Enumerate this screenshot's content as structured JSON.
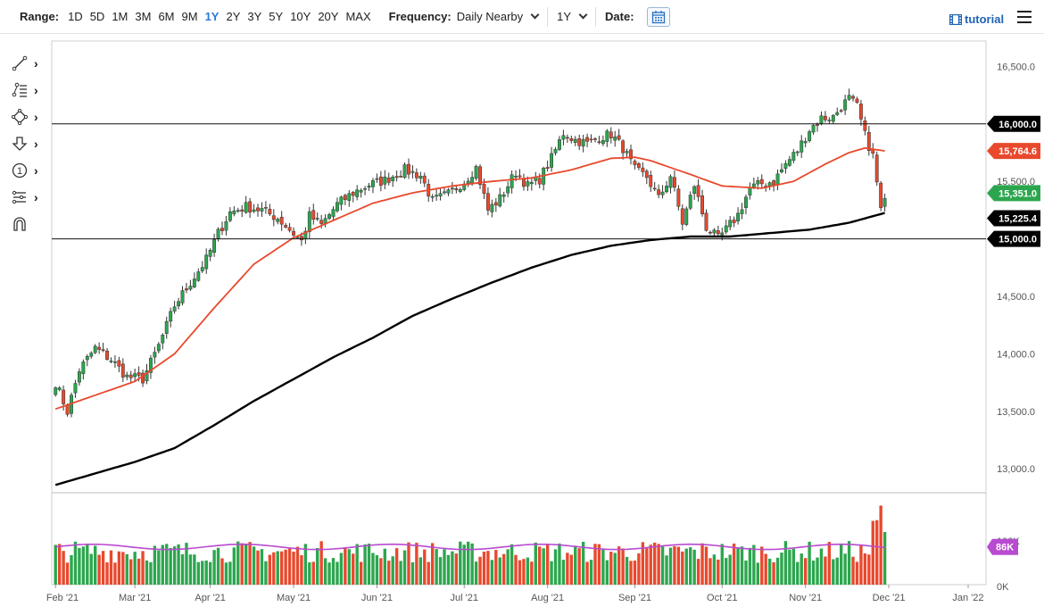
{
  "toolbar": {
    "range_label": "Range:",
    "ranges": [
      "1D",
      "5D",
      "1M",
      "3M",
      "6M",
      "9M",
      "1Y",
      "2Y",
      "3Y",
      "5Y",
      "10Y",
      "20Y",
      "MAX"
    ],
    "active_range": "1Y",
    "frequency_label": "Frequency:",
    "frequency_value": "Daily Nearby",
    "period_value": "1Y",
    "date_label": "Date:",
    "tutorial_label": "tutorial"
  },
  "sidebar": {
    "tools": [
      "line-tool-icon",
      "fib-tool-icon",
      "shape-tool-icon",
      "arrow-down-tool-icon",
      "number-tool-icon",
      "pattern-tool-icon",
      "magnet-icon"
    ]
  },
  "colors": {
    "up": "#2ca64e",
    "down": "#e8492d",
    "ma_fast": "#e8492d",
    "ma_slow": "#000000",
    "volume_avg": "#b84bd0",
    "accent": "#2a7ad8"
  },
  "chart_data": {
    "type": "candlestick",
    "y_ticks": [
      13000,
      13500,
      14000,
      14500,
      15000,
      15500,
      16000,
      16500
    ],
    "y_tick_labels": [
      "13,000.0",
      "13,500.0",
      "14,000.0",
      "14,500.0",
      "15,000.0",
      "15,500.0",
      "16,000.0",
      "16,500.0"
    ],
    "ylim": [
      12800,
      16720
    ],
    "x_labels": [
      "Feb '21",
      "Mar '21",
      "Apr '21",
      "May '21",
      "Jun '21",
      "Jul '21",
      "Aug '21",
      "Sep '21",
      "Oct '21",
      "Nov '21",
      "Dec '21",
      "Jan '22"
    ],
    "x_label_idx": [
      0,
      20,
      39,
      60,
      81,
      103,
      124,
      146,
      168,
      189,
      210,
      230
    ],
    "horizontal_lines": [
      16000,
      15000
    ],
    "price_tags": [
      {
        "label": "16,000.0",
        "value": 16000,
        "kind": "line"
      },
      {
        "label": "15,764.6",
        "value": 15764.6,
        "kind": "ma_fast"
      },
      {
        "label": "15,351.0",
        "value": 15351,
        "kind": "last"
      },
      {
        "label": "15,225.4",
        "value": 15225.4,
        "kind": "ma_slow"
      },
      {
        "label": "15,000.0",
        "value": 15000,
        "kind": "line"
      }
    ],
    "close_anchors": [
      [
        0,
        13750
      ],
      [
        3,
        13500
      ],
      [
        6,
        13860
      ],
      [
        10,
        14050
      ],
      [
        14,
        13950
      ],
      [
        18,
        13800
      ],
      [
        22,
        13780
      ],
      [
        26,
        14070
      ],
      [
        30,
        14420
      ],
      [
        34,
        14620
      ],
      [
        38,
        14820
      ],
      [
        41,
        15050
      ],
      [
        44,
        15230
      ],
      [
        48,
        15280
      ],
      [
        52,
        15250
      ],
      [
        56,
        15180
      ],
      [
        59,
        15080
      ],
      [
        62,
        14980
      ],
      [
        64,
        15200
      ],
      [
        67,
        15120
      ],
      [
        71,
        15300
      ],
      [
        75,
        15400
      ],
      [
        79,
        15470
      ],
      [
        83,
        15510
      ],
      [
        88,
        15600
      ],
      [
        92,
        15550
      ],
      [
        95,
        15330
      ],
      [
        99,
        15390
      ],
      [
        103,
        15500
      ],
      [
        106,
        15620
      ],
      [
        109,
        15250
      ],
      [
        112,
        15350
      ],
      [
        116,
        15580
      ],
      [
        119,
        15460
      ],
      [
        122,
        15520
      ],
      [
        125,
        15700
      ],
      [
        128,
        15920
      ],
      [
        131,
        15860
      ],
      [
        134,
        15830
      ],
      [
        137,
        15880
      ],
      [
        140,
        15910
      ],
      [
        143,
        15790
      ],
      [
        146,
        15600
      ],
      [
        149,
        15540
      ],
      [
        152,
        15350
      ],
      [
        155,
        15550
      ],
      [
        158,
        15140
      ],
      [
        161,
        15470
      ],
      [
        164,
        15100
      ],
      [
        167,
        15000
      ],
      [
        169,
        15080
      ],
      [
        172,
        15210
      ],
      [
        175,
        15440
      ],
      [
        178,
        15480
      ],
      [
        181,
        15500
      ],
      [
        184,
        15650
      ],
      [
        187,
        15770
      ],
      [
        190,
        15950
      ],
      [
        193,
        16050
      ],
      [
        196,
        16060
      ],
      [
        198,
        16150
      ],
      [
        200,
        16220
      ],
      [
        202,
        16150
      ],
      [
        204,
        15900
      ],
      [
        206,
        15720
      ],
      [
        208,
        15250
      ],
      [
        209,
        15351
      ]
    ],
    "ma_fast_anchors": [
      [
        0,
        13520
      ],
      [
        10,
        13640
      ],
      [
        20,
        13760
      ],
      [
        30,
        14000
      ],
      [
        40,
        14400
      ],
      [
        50,
        14780
      ],
      [
        60,
        15010
      ],
      [
        70,
        15160
      ],
      [
        80,
        15310
      ],
      [
        90,
        15400
      ],
      [
        100,
        15460
      ],
      [
        110,
        15500
      ],
      [
        120,
        15530
      ],
      [
        130,
        15600
      ],
      [
        140,
        15700
      ],
      [
        146,
        15710
      ],
      [
        150,
        15680
      ],
      [
        160,
        15560
      ],
      [
        168,
        15460
      ],
      [
        178,
        15440
      ],
      [
        186,
        15500
      ],
      [
        194,
        15650
      ],
      [
        200,
        15750
      ],
      [
        204,
        15790
      ],
      [
        209,
        15764.6
      ]
    ],
    "ma_slow_anchors": [
      [
        0,
        12860
      ],
      [
        10,
        12960
      ],
      [
        20,
        13060
      ],
      [
        30,
        13180
      ],
      [
        40,
        13380
      ],
      [
        50,
        13590
      ],
      [
        60,
        13780
      ],
      [
        70,
        13970
      ],
      [
        80,
        14140
      ],
      [
        90,
        14330
      ],
      [
        100,
        14480
      ],
      [
        110,
        14620
      ],
      [
        120,
        14750
      ],
      [
        130,
        14860
      ],
      [
        140,
        14940
      ],
      [
        150,
        14990
      ],
      [
        160,
        15020
      ],
      [
        170,
        15020
      ],
      [
        180,
        15050
      ],
      [
        190,
        15080
      ],
      [
        200,
        15140
      ],
      [
        209,
        15225.4
      ]
    ],
    "volume": {
      "labels": [
        "100K",
        "86K",
        "0K"
      ],
      "average": 86000,
      "max": 185000
    }
  }
}
